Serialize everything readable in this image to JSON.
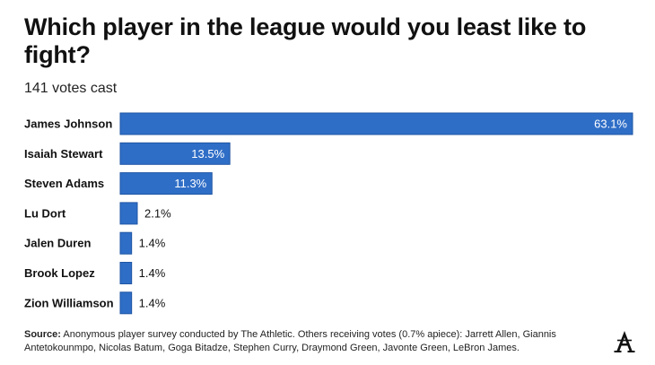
{
  "title": "Which player in the league would you least like to fight?",
  "subtitle": "141 votes cast",
  "source_label": "Source:",
  "source_text": " Anonymous player survey conducted by The Athletic. Others receiving votes (0.7% apiece): Jarrett Allen, Giannis Antetokounmpo, Nicolas Batum, Goga Bitadze, Stephen Curry, Draymond Green, Javonte Green, LeBron James.",
  "logo": {
    "icon": "the-athletic-logo",
    "letter": "A"
  },
  "colors": {
    "bar": "#2f6ec7",
    "bar_stroke": "#1f55a3",
    "label_inside": "#ffffff",
    "label_outside": "#111111"
  },
  "chart_data": {
    "type": "bar",
    "orientation": "horizontal",
    "title": "Which player in the league would you least like to fight?",
    "categories": [
      "James Johnson",
      "Isaiah Stewart",
      "Steven Adams",
      "Lu Dort",
      "Jalen Duren",
      "Brook Lopez",
      "Zion Williamson"
    ],
    "values": [
      63.1,
      13.5,
      11.3,
      2.1,
      1.4,
      1.4,
      1.4
    ],
    "value_labels": [
      "63.1%",
      "13.5%",
      "11.3%",
      "2.1%",
      "1.4%",
      "1.4%",
      "1.4%"
    ],
    "xlim": [
      0,
      63.1
    ],
    "grid": false,
    "legend": "none"
  }
}
